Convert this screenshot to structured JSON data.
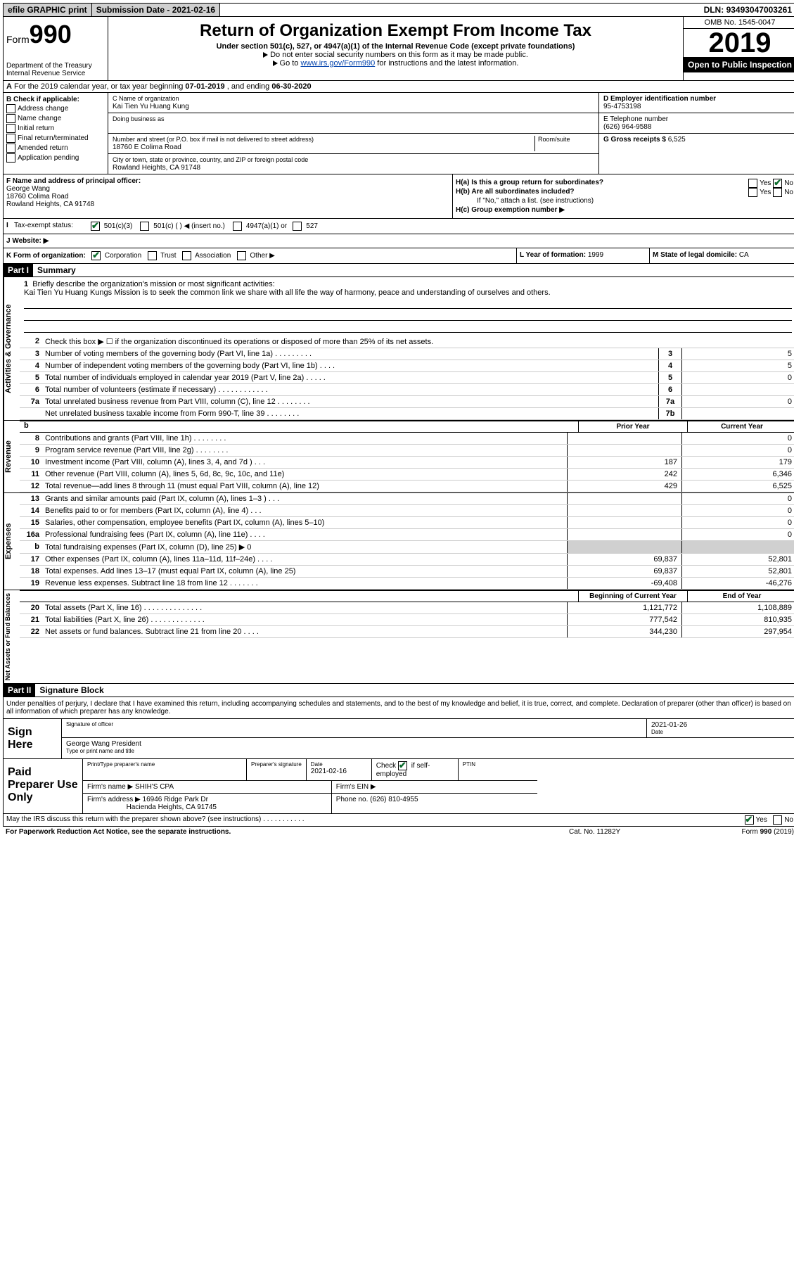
{
  "topbar": {
    "efile": "efile GRAPHIC print",
    "submission_label": "Submission Date - ",
    "submission_date": "2021-02-16",
    "dln_label": "DLN: ",
    "dln": "93493047003261"
  },
  "header": {
    "form_label": "Form",
    "form_number": "990",
    "dept": "Department of the Treasury\nInternal Revenue Service",
    "title": "Return of Organization Exempt From Income Tax",
    "sub1": "Under section 501(c), 527, or 4947(a)(1) of the Internal Revenue Code (except private foundations)",
    "sub2": "Do not enter social security numbers on this form as it may be made public.",
    "sub3_pre": "Go to ",
    "sub3_link": "www.irs.gov/Form990",
    "sub3_post": " for instructions and the latest information.",
    "omb": "OMB No. 1545-0047",
    "tax_year": "2019",
    "open_pub": "Open to Public Inspection"
  },
  "row_a": {
    "text": "For the 2019 calendar year, or tax year beginning ",
    "begin": "07-01-2019",
    "mid": " , and ending ",
    "end": "06-30-2020"
  },
  "section_b": {
    "title": "B Check if applicable:",
    "items": [
      "Address change",
      "Name change",
      "Initial return",
      "Final return/terminated",
      "Amended return",
      "Application pending"
    ]
  },
  "section_c": {
    "name_label": "C Name of organization",
    "name": "Kai Tien Yu Huang Kung",
    "dba_label": "Doing business as",
    "dba": "",
    "addr_label": "Number and street (or P.O. box if mail is not delivered to street address)",
    "room_label": "Room/suite",
    "addr": "18760 E Colima Road",
    "city_label": "City or town, state or province, country, and ZIP or foreign postal code",
    "city": "Rowland Heights, CA  91748"
  },
  "section_d": {
    "ein_label": "D Employer identification number",
    "ein": "95-4753198",
    "tel_label": "E Telephone number",
    "tel": "(626) 964-9588",
    "gross_label": "G Gross receipts $ ",
    "gross": "6,525"
  },
  "section_f": {
    "label": "F  Name and address of principal officer:",
    "name": "George Wang",
    "addr1": "18760 Colima Road",
    "addr2": "Rowland Heights, CA  91748"
  },
  "section_h": {
    "ha": "H(a)  Is this a group return for subordinates?",
    "hb": "H(b)  Are all subordinates included?",
    "hb_note": "If \"No,\" attach a list. (see instructions)",
    "hc": "H(c)  Group exemption number ▶",
    "yes": "Yes",
    "no": "No"
  },
  "tax_status": {
    "label": "Tax-exempt status:",
    "o1": "501(c)(3)",
    "o2": "501(c) (  ) ◀ (insert no.)",
    "o3": "4947(a)(1) or",
    "o4": "527"
  },
  "website_label": "J   Website: ▶",
  "row_klm": {
    "k_label": "K Form of organization:",
    "k_opts": [
      "Corporation",
      "Trust",
      "Association",
      "Other ▶"
    ],
    "l_label": "L Year of formation: ",
    "l_val": "1999",
    "m_label": "M State of legal domicile: ",
    "m_val": "CA"
  },
  "part1": {
    "hdr": "Part I",
    "title": "Summary",
    "q1": "Briefly describe the organization's mission or most significant activities:",
    "mission": "Kai Tien Yu Huang Kungs Mission is to seek the common link we share with all life the way of harmony, peace and understanding of ourselves and others.",
    "q2": "Check this box ▶ ☐ if the organization discontinued its operations or disposed of more than 25% of its net assets.",
    "lines_ag": [
      {
        "n": "3",
        "d": "Number of voting members of the governing body (Part VI, line 1a)  .  .  .  .  .  .  .  .  .",
        "box": "3",
        "v": "5"
      },
      {
        "n": "4",
        "d": "Number of independent voting members of the governing body (Part VI, line 1b)  .  .  .  .",
        "box": "4",
        "v": "5"
      },
      {
        "n": "5",
        "d": "Total number of individuals employed in calendar year 2019 (Part V, line 2a)  .  .  .  .  .",
        "box": "5",
        "v": "0"
      },
      {
        "n": "6",
        "d": "Total number of volunteers (estimate if necessary)   .   .   .   .   .   .   .   .   .   .   .   .",
        "box": "6",
        "v": ""
      },
      {
        "n": "7a",
        "d": "Total unrelated business revenue from Part VIII, column (C), line 12  .  .  .  .  .  .  .  .",
        "box": "7a",
        "v": "0"
      },
      {
        "n": "",
        "d": "Net unrelated business taxable income from Form 990-T, line 39   .   .   .   .   .   .   .   .",
        "box": "7b",
        "v": ""
      }
    ],
    "vtabs": [
      "Activities & Governance",
      "Revenue",
      "Expenses",
      "Net Assets or Fund Balances"
    ],
    "hdr_prior": "Prior Year",
    "hdr_current": "Current Year",
    "hdr_bcy": "Beginning of Current Year",
    "hdr_eoy": "End of Year",
    "rev": [
      {
        "n": "8",
        "d": "Contributions and grants (Part VIII, line 1h)   .   .   .   .   .   .   .   .",
        "p": "",
        "c": "0"
      },
      {
        "n": "9",
        "d": "Program service revenue (Part VIII, line 2g)   .   .   .   .   .   .   .   .",
        "p": "",
        "c": "0"
      },
      {
        "n": "10",
        "d": "Investment income (Part VIII, column (A), lines 3, 4, and 7d )   .   .   .",
        "p": "187",
        "c": "179"
      },
      {
        "n": "11",
        "d": "Other revenue (Part VIII, column (A), lines 5, 6d, 8c, 9c, 10c, and 11e)",
        "p": "242",
        "c": "6,346"
      },
      {
        "n": "12",
        "d": "Total revenue—add lines 8 through 11 (must equal Part VIII, column (A), line 12)",
        "p": "429",
        "c": "6,525"
      }
    ],
    "exp": [
      {
        "n": "13",
        "d": "Grants and similar amounts paid (Part IX, column (A), lines 1–3 )   .   .   .",
        "p": "",
        "c": "0"
      },
      {
        "n": "14",
        "d": "Benefits paid to or for members (Part IX, column (A), line 4)   .   .   .",
        "p": "",
        "c": "0"
      },
      {
        "n": "15",
        "d": "Salaries, other compensation, employee benefits (Part IX, column (A), lines 5–10)",
        "p": "",
        "c": "0"
      },
      {
        "n": "16a",
        "d": "Professional fundraising fees (Part IX, column (A), line 11e)   .   .   .   .",
        "p": "",
        "c": "0"
      },
      {
        "n": "b",
        "d": "Total fundraising expenses (Part IX, column (D), line 25) ▶ 0",
        "p": "shade",
        "c": "shade"
      },
      {
        "n": "17",
        "d": "Other expenses (Part IX, column (A), lines 11a–11d, 11f–24e)   .   .   .   .",
        "p": "69,837",
        "c": "52,801"
      },
      {
        "n": "18",
        "d": "Total expenses. Add lines 13–17 (must equal Part IX, column (A), line 25)",
        "p": "69,837",
        "c": "52,801"
      },
      {
        "n": "19",
        "d": "Revenue less expenses. Subtract line 18 from line 12  .  .  .  .  .  .  .",
        "p": "-69,408",
        "c": "-46,276"
      }
    ],
    "net": [
      {
        "n": "20",
        "d": "Total assets (Part X, line 16)  .  .  .  .  .  .  .  .  .  .  .  .  .  .",
        "p": "1,121,772",
        "c": "1,108,889"
      },
      {
        "n": "21",
        "d": "Total liabilities (Part X, line 26)  .  .  .  .  .  .  .  .  .  .  .  .  .",
        "p": "777,542",
        "c": "810,935"
      },
      {
        "n": "22",
        "d": "Net assets or fund balances. Subtract line 21 from line 20   .   .   .   .",
        "p": "344,230",
        "c": "297,954"
      }
    ]
  },
  "part2": {
    "hdr": "Part II",
    "title": "Signature Block",
    "intro": "Under penalties of perjury, I declare that I have examined this return, including accompanying schedules and statements, and to the best of my knowledge and belief, it is true, correct, and complete. Declaration of preparer (other than officer) is based on all information of which preparer has any knowledge.",
    "sign_here": "Sign Here",
    "sig_officer": "Signature of officer",
    "date_label": "Date",
    "sig_date": "2021-01-26",
    "name_title": "George Wang  President",
    "name_title_label": "Type or print name and title",
    "paid_prep": "Paid Preparer Use Only",
    "pp_name_label": "Print/Type preparer's name",
    "pp_sig_label": "Preparer's signature",
    "pp_date_label": "Date",
    "pp_date": "2021-02-16",
    "pp_check_label": "Check ",
    "pp_check_suffix": " if self-employed",
    "ptin_label": "PTIN",
    "firm_name_label": "Firm's name   ▶ ",
    "firm_name": "SHIH'S CPA",
    "firm_ein_label": "Firm's EIN ▶",
    "firm_addr_label": "Firm's address ▶ ",
    "firm_addr1": "16946 Ridge Park Dr",
    "firm_addr2": "Hacienda Heights, CA  91745",
    "phone_label": "Phone no. ",
    "phone": "(626) 810-4955"
  },
  "footer": {
    "discuss": "May the IRS discuss this return with the preparer shown above? (see instructions)   .   .   .   .   .   .   .   .   .   .   .",
    "yes": "Yes",
    "no": "No",
    "pra": "For Paperwork Reduction Act Notice, see the separate instructions.",
    "cat": "Cat. No. 11282Y",
    "form": "Form 990 (2019)"
  }
}
